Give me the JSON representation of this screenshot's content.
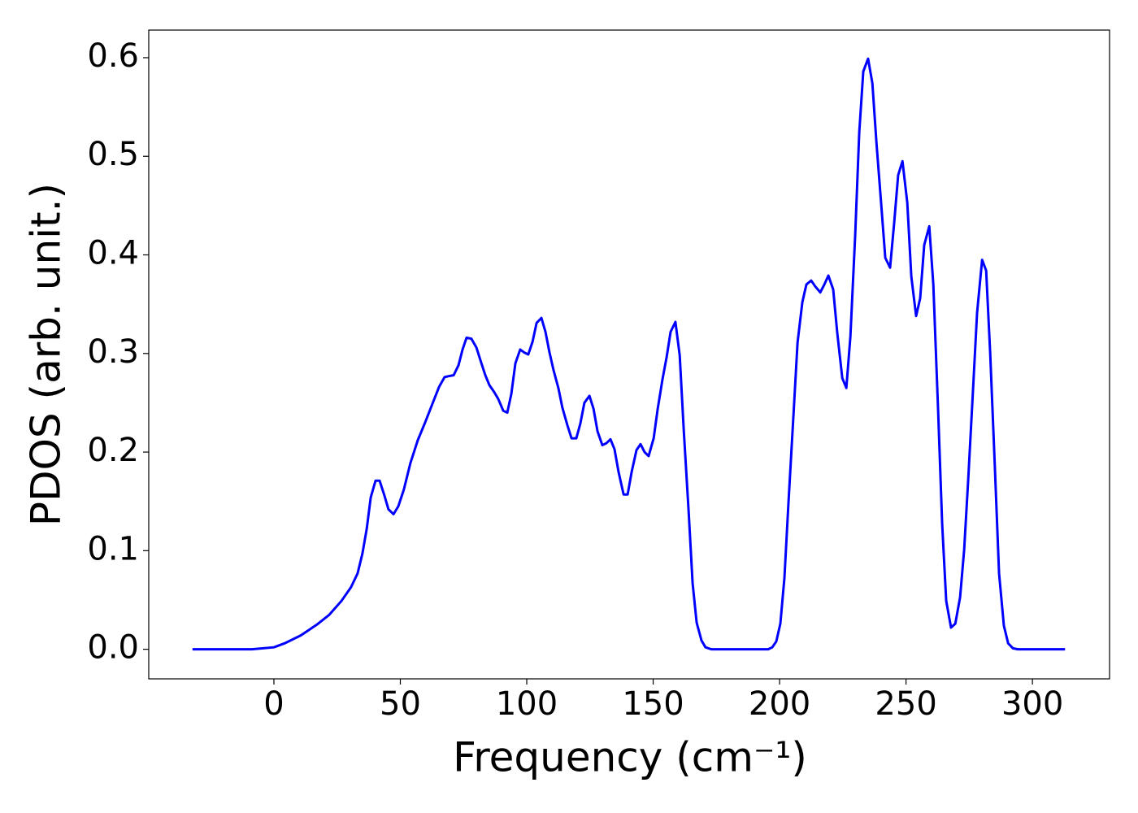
{
  "chart_data": {
    "type": "line",
    "xlabel": "Frequency (cm⁻¹)",
    "ylabel": "PDOS (arb. unit.)",
    "x": [
      -32.2,
      -8.7,
      0,
      4.2,
      10.6,
      17,
      21.9,
      26.7,
      30.5,
      33.1,
      35,
      36.7,
      38.3,
      40.2,
      41.8,
      43.7,
      45.3,
      47.3,
      49.2,
      51.4,
      54,
      56.9,
      59.8,
      62.7,
      65.3,
      67.5,
      69.1,
      71.1,
      73,
      74.6,
      76.2,
      78.1,
      80.1,
      81.7,
      83.6,
      85.2,
      87.1,
      88.7,
      90.7,
      92.3,
      93.9,
      95.5,
      97.4,
      99,
      100.6,
      102.3,
      103.9,
      105.8,
      107.4,
      109,
      110.6,
      112.5,
      114.1,
      116.1,
      117.7,
      119.6,
      121.2,
      122.8,
      124.8,
      126.4,
      128,
      129.9,
      131.5,
      133.1,
      134.7,
      136.3,
      138.3,
      139.9,
      141.5,
      143.4,
      145,
      146.6,
      148.2,
      150.2,
      151.8,
      153.7,
      155.3,
      156.9,
      158.8,
      160.5,
      162.1,
      164,
      165.6,
      167.2,
      169.1,
      170.7,
      173,
      195.5,
      197.1,
      198.7,
      200.3,
      201.9,
      203.5,
      205.5,
      207.1,
      209,
      210.6,
      212.5,
      214.1,
      216.1,
      217.7,
      219.3,
      221.2,
      222.8,
      224.8,
      226.4,
      228,
      229.9,
      231.5,
      233.1,
      235,
      236.7,
      238.3,
      240.2,
      241.8,
      243.7,
      245.3,
      246.9,
      248.6,
      250.5,
      252.1,
      254,
      255.6,
      257.2,
      259.2,
      260.8,
      262.7,
      264.3,
      265.9,
      267.8,
      269.5,
      271.4,
      273,
      274.6,
      276.5,
      278.1,
      280.1,
      281.7,
      283.3,
      285.2,
      286.8,
      288.7,
      290.4,
      292.3,
      294.2,
      312.9
    ],
    "series": [
      {
        "color": "#0000ff",
        "values": [
          0,
          0,
          0.002,
          0.006,
          0.014,
          0.025,
          0.035,
          0.049,
          0.063,
          0.077,
          0.097,
          0.122,
          0.154,
          0.171,
          0.171,
          0.156,
          0.142,
          0.137,
          0.145,
          0.162,
          0.189,
          0.212,
          0.23,
          0.249,
          0.266,
          0.276,
          0.277,
          0.278,
          0.288,
          0.304,
          0.316,
          0.315,
          0.306,
          0.293,
          0.278,
          0.268,
          0.261,
          0.254,
          0.242,
          0.24,
          0.259,
          0.29,
          0.304,
          0.301,
          0.299,
          0.312,
          0.331,
          0.336,
          0.322,
          0.301,
          0.283,
          0.265,
          0.245,
          0.227,
          0.214,
          0.214,
          0.229,
          0.25,
          0.257,
          0.244,
          0.221,
          0.207,
          0.209,
          0.213,
          0.203,
          0.18,
          0.157,
          0.157,
          0.18,
          0.202,
          0.208,
          0.2,
          0.196,
          0.214,
          0.244,
          0.274,
          0.296,
          0.322,
          0.332,
          0.298,
          0.222,
          0.141,
          0.067,
          0.027,
          0.009,
          0.002,
          0,
          0,
          0.002,
          0.008,
          0.026,
          0.072,
          0.148,
          0.238,
          0.311,
          0.352,
          0.37,
          0.374,
          0.368,
          0.362,
          0.37,
          0.379,
          0.365,
          0.321,
          0.275,
          0.265,
          0.317,
          0.42,
          0.524,
          0.586,
          0.599,
          0.574,
          0.514,
          0.451,
          0.397,
          0.387,
          0.432,
          0.481,
          0.495,
          0.453,
          0.378,
          0.338,
          0.356,
          0.41,
          0.429,
          0.37,
          0.242,
          0.127,
          0.049,
          0.022,
          0.026,
          0.053,
          0.101,
          0.172,
          0.263,
          0.341,
          0.395,
          0.384,
          0.3,
          0.181,
          0.077,
          0.024,
          0.006,
          0.001,
          0,
          0
        ]
      }
    ],
    "xlim": [
      -49.5,
      330.5
    ],
    "xticks": [
      0,
      50,
      100,
      150,
      200,
      250,
      300
    ],
    "ylim": [
      -0.03,
      0.628
    ],
    "yticks": [
      {
        "value": 0,
        "label": "0.0"
      },
      0.1,
      0.2,
      0.3,
      0.4,
      0.5,
      0.6
    ]
  }
}
